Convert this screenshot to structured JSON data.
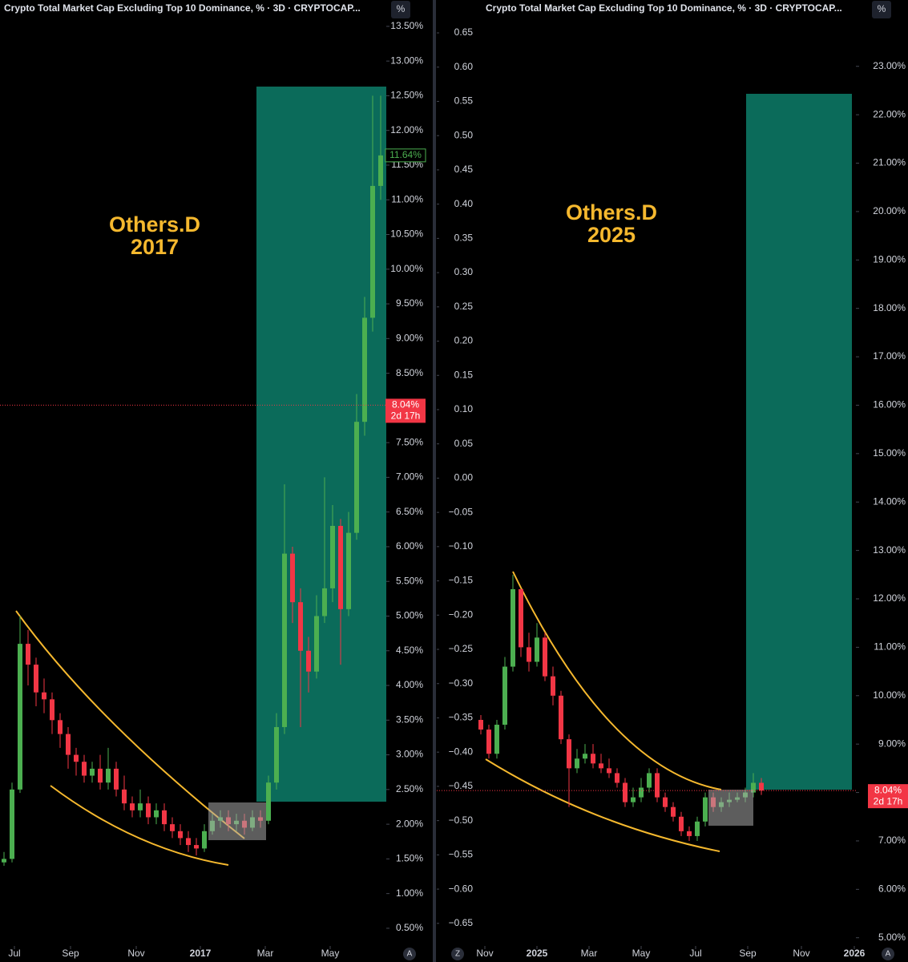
{
  "chart_data": [
    {
      "type": "candlestick",
      "title": "Crypto Total Market Cap Excluding Top 10 Dominance, % · 3D · CRYPTOCAP...",
      "annotation": [
        "Others.D",
        "2017"
      ],
      "scale_button": "%",
      "auto_button": "A",
      "up_color": "#4caf50",
      "down_color": "#f23645",
      "annotation_color": "#f5b82e",
      "xlim": [
        0,
        48.2
      ],
      "xticks": [
        {
          "value": 1.8,
          "label": "Jul"
        },
        {
          "value": 8.8,
          "label": "Sep"
        },
        {
          "value": 17,
          "label": "Nov"
        },
        {
          "value": 25,
          "label": "2017"
        },
        {
          "value": 33.1,
          "label": "Mar"
        },
        {
          "value": 41.2,
          "label": "May"
        }
      ],
      "ylim": [
        0.245,
        13.88
      ],
      "yticks": [
        {
          "value": 13.5,
          "label": "13.50%"
        },
        {
          "value": 13,
          "label": "13.00%"
        },
        {
          "value": 12.5,
          "label": "12.50%"
        },
        {
          "value": 12,
          "label": "12.00%"
        },
        {
          "value": 11.5,
          "label": "11.50%"
        },
        {
          "value": 11,
          "label": "11.00%"
        },
        {
          "value": 10.5,
          "label": "10.50%"
        },
        {
          "value": 10,
          "label": "10.00%"
        },
        {
          "value": 9.5,
          "label": "9.50%"
        },
        {
          "value": 9,
          "label": "9.00%"
        },
        {
          "value": 8.5,
          "label": "8.50%"
        },
        {
          "value": 8,
          "label": "8.00%"
        },
        {
          "value": 7.5,
          "label": "7.50%"
        },
        {
          "value": 7,
          "label": "7.00%"
        },
        {
          "value": 6.5,
          "label": "6.50%"
        },
        {
          "value": 6,
          "label": "6.00%"
        },
        {
          "value": 5.5,
          "label": "5.50%"
        },
        {
          "value": 5,
          "label": "5.00%"
        },
        {
          "value": 4.5,
          "label": "4.50%"
        },
        {
          "value": 4,
          "label": "4.00%"
        },
        {
          "value": 3.5,
          "label": "3.50%"
        },
        {
          "value": 3,
          "label": "3.00%"
        },
        {
          "value": 2.5,
          "label": "2.50%"
        },
        {
          "value": 2,
          "label": "2.00%"
        },
        {
          "value": 1.5,
          "label": "1.50%"
        },
        {
          "value": 1,
          "label": "1.00%"
        },
        {
          "value": 0.5,
          "label": "0.50%"
        }
      ],
      "open": [
        1.45,
        1.5,
        2.5,
        4.6,
        4.3,
        3.9,
        3.8,
        3.5,
        3.3,
        3.0,
        2.9,
        2.7,
        2.8,
        2.6,
        2.8,
        2.5,
        2.3,
        2.2,
        2.3,
        2.1,
        2.2,
        2.0,
        1.9,
        1.8,
        1.7,
        1.65,
        1.9,
        2.05,
        2.1,
        2.0,
        2.05,
        1.95,
        2.1,
        2.05,
        2.6,
        3.4,
        5.9,
        5.2,
        4.5,
        4.2,
        5.0,
        5.4,
        6.3,
        5.1,
        6.2,
        7.8,
        9.3,
        11.2
      ],
      "high": [
        1.6,
        2.6,
        5.0,
        4.8,
        4.4,
        4.1,
        3.9,
        3.6,
        3.4,
        3.1,
        3.0,
        2.9,
        3.0,
        3.1,
        2.9,
        2.7,
        2.4,
        2.5,
        2.4,
        2.3,
        2.3,
        2.1,
        2.0,
        1.9,
        1.8,
        2.0,
        2.15,
        2.2,
        2.2,
        2.15,
        2.15,
        2.2,
        2.2,
        2.7,
        3.6,
        6.9,
        6.0,
        5.4,
        4.7,
        5.3,
        7.0,
        6.6,
        6.4,
        6.5,
        8.2,
        9.6,
        12.5,
        12.5
      ],
      "low": [
        1.4,
        1.45,
        2.45,
        4.0,
        3.7,
        3.6,
        3.3,
        3.1,
        2.8,
        2.7,
        2.6,
        2.6,
        2.5,
        2.5,
        2.4,
        2.2,
        2.1,
        2.1,
        2.0,
        2.0,
        1.9,
        1.8,
        1.7,
        1.6,
        1.55,
        1.6,
        1.85,
        1.95,
        1.9,
        1.9,
        1.85,
        1.9,
        1.95,
        2.0,
        2.5,
        3.3,
        4.9,
        3.4,
        3.9,
        4.1,
        4.9,
        5.2,
        4.3,
        5.0,
        6.1,
        7.6,
        9.1,
        11.0
      ],
      "close": [
        1.5,
        2.5,
        4.6,
        4.3,
        3.9,
        3.8,
        3.5,
        3.3,
        3.0,
        2.9,
        2.7,
        2.8,
        2.6,
        2.8,
        2.5,
        2.3,
        2.2,
        2.3,
        2.1,
        2.2,
        2.0,
        1.9,
        1.8,
        1.7,
        1.65,
        1.9,
        2.05,
        2.1,
        2.0,
        2.05,
        1.95,
        2.1,
        2.05,
        2.6,
        3.4,
        5.9,
        5.2,
        4.5,
        4.2,
        5.0,
        5.4,
        6.3,
        5.1,
        6.2,
        7.8,
        9.3,
        11.2,
        11.64
      ],
      "last_price": {
        "value": 11.64,
        "label": "11.64%"
      },
      "current_price": {
        "value": 8.04,
        "label": "8.04%",
        "countdown": "2d 17h"
      }
    },
    {
      "type": "candlestick",
      "title": "Crypto Total Market Cap Excluding Top 10 Dominance, % · 3D · CRYPTOCAP...",
      "annotation": [
        "Others.D",
        "2025"
      ],
      "scale_button": "%",
      "auto_button": "A",
      "zoom_button": "Z",
      "up_color": "#4caf50",
      "down_color": "#f23645",
      "annotation_color": "#f5b82e",
      "xlim": [
        -5,
        47.3
      ],
      "xticks": [
        {
          "value": 1,
          "label": "Nov"
        },
        {
          "value": 7.5,
          "label": "2025"
        },
        {
          "value": 14,
          "label": "Mar"
        },
        {
          "value": 20.5,
          "label": "May"
        },
        {
          "value": 27.3,
          "label": "Jul"
        },
        {
          "value": 33.8,
          "label": "Sep"
        },
        {
          "value": 40.5,
          "label": "Nov"
        },
        {
          "value": 47.1,
          "label": "2026"
        }
      ],
      "ylim": [
        4.83,
        24.37
      ],
      "yticks": [
        {
          "value": 23,
          "label": "23.00%"
        },
        {
          "value": 22,
          "label": "22.00%"
        },
        {
          "value": 21,
          "label": "21.00%"
        },
        {
          "value": 20,
          "label": "20.00%"
        },
        {
          "value": 19,
          "label": "19.00%"
        },
        {
          "value": 18,
          "label": "18.00%"
        },
        {
          "value": 17,
          "label": "17.00%"
        },
        {
          "value": 16,
          "label": "16.00%"
        },
        {
          "value": 15,
          "label": "15.00%"
        },
        {
          "value": 14,
          "label": "14.00%"
        },
        {
          "value": 13,
          "label": "13.00%"
        },
        {
          "value": 12,
          "label": "12.00%"
        },
        {
          "value": 11,
          "label": "11.00%"
        },
        {
          "value": 10,
          "label": "10.00%"
        },
        {
          "value": 9,
          "label": "9.00%"
        },
        {
          "value": 8,
          "label": "8.00%"
        },
        {
          "value": 7,
          "label": "7.00%"
        },
        {
          "value": 6,
          "label": "6.00%"
        },
        {
          "value": 5,
          "label": "5.00%"
        }
      ],
      "y2lim": [
        -0.683,
        0.698
      ],
      "y2ticks": [
        0.65,
        {
          "value": 0.6,
          "label": "0.60"
        },
        0.55,
        {
          "value": 0.5,
          "label": "0.50"
        },
        0.45,
        {
          "value": 0.4,
          "label": "0.40"
        },
        0.35,
        {
          "value": 0.3,
          "label": "0.30"
        },
        0.25,
        {
          "value": 0.2,
          "label": "0.20"
        },
        0.15,
        {
          "value": 0.1,
          "label": "0.10"
        },
        0.05,
        {
          "value": 0,
          "label": "0.00"
        },
        {
          "value": -0.05,
          "label": "−0.05"
        },
        {
          "value": -0.1,
          "label": "−0.10"
        },
        {
          "value": -0.15,
          "label": "−0.15"
        },
        {
          "value": -0.2,
          "label": "−0.20"
        },
        {
          "value": -0.25,
          "label": "−0.25"
        },
        {
          "value": -0.3,
          "label": "−0.30"
        },
        {
          "value": -0.35,
          "label": "−0.35"
        },
        {
          "value": -0.4,
          "label": "−0.40"
        },
        {
          "value": -0.45,
          "label": "−0.45"
        },
        {
          "value": -0.5,
          "label": "−0.50"
        },
        {
          "value": -0.55,
          "label": "−0.55"
        },
        {
          "value": -0.6,
          "label": "−0.60"
        },
        {
          "value": -0.65,
          "label": "−0.65"
        }
      ],
      "open": [
        9.5,
        9.3,
        8.8,
        9.4,
        10.6,
        12.2,
        11.0,
        10.7,
        11.2,
        10.4,
        10.0,
        9.1,
        8.5,
        8.7,
        8.8,
        8.6,
        8.5,
        8.4,
        8.2,
        7.8,
        7.9,
        8.1,
        8.4,
        7.9,
        7.7,
        7.5,
        7.2,
        7.1,
        7.4,
        7.9,
        7.7,
        7.8,
        7.85,
        7.9,
        8.0,
        8.2
      ],
      "high": [
        9.6,
        9.4,
        9.5,
        10.8,
        12.5,
        12.2,
        11.3,
        11.5,
        11.3,
        10.6,
        10.1,
        9.2,
        8.9,
        9.0,
        9.0,
        8.8,
        8.7,
        8.5,
        8.3,
        8.1,
        8.3,
        8.5,
        8.5,
        8.0,
        7.8,
        7.6,
        7.3,
        7.5,
        8.0,
        8.0,
        7.9,
        8.0,
        8.0,
        8.1,
        8.4,
        8.3
      ],
      "low": [
        9.2,
        8.7,
        8.7,
        9.3,
        10.5,
        10.8,
        10.5,
        10.6,
        10.3,
        9.8,
        9.0,
        7.7,
        8.4,
        8.6,
        8.5,
        8.4,
        8.3,
        8.1,
        7.7,
        7.7,
        7.8,
        8.0,
        7.8,
        7.6,
        7.4,
        7.1,
        7.0,
        7.0,
        7.3,
        7.6,
        7.6,
        7.7,
        7.8,
        7.8,
        7.9,
        7.95
      ],
      "close": [
        9.3,
        8.8,
        9.4,
        10.6,
        12.2,
        11.0,
        10.7,
        11.2,
        10.4,
        10.0,
        9.1,
        8.5,
        8.7,
        8.8,
        8.6,
        8.5,
        8.4,
        8.2,
        7.8,
        7.9,
        8.1,
        8.4,
        7.9,
        7.7,
        7.5,
        7.2,
        7.1,
        7.4,
        7.9,
        7.7,
        7.8,
        7.85,
        7.9,
        8.0,
        8.2,
        8.04
      ],
      "current_price": {
        "value": 8.04,
        "label": "8.04%",
        "countdown": "2d 17h"
      }
    }
  ]
}
